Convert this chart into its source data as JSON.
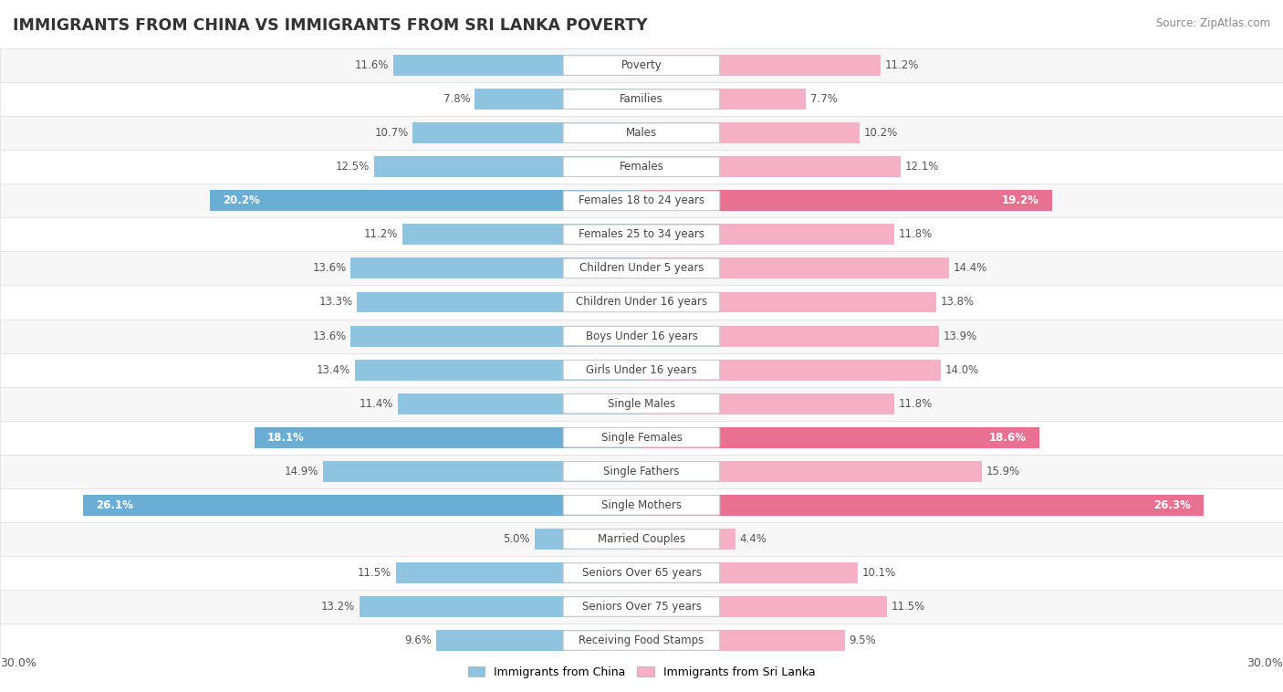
{
  "title": "IMMIGRANTS FROM CHINA VS IMMIGRANTS FROM SRI LANKA POVERTY",
  "source": "Source: ZipAtlas.com",
  "categories": [
    "Poverty",
    "Families",
    "Males",
    "Females",
    "Females 18 to 24 years",
    "Females 25 to 34 years",
    "Children Under 5 years",
    "Children Under 16 years",
    "Boys Under 16 years",
    "Girls Under 16 years",
    "Single Males",
    "Single Females",
    "Single Fathers",
    "Single Mothers",
    "Married Couples",
    "Seniors Over 65 years",
    "Seniors Over 75 years",
    "Receiving Food Stamps"
  ],
  "china_values": [
    11.6,
    7.8,
    10.7,
    12.5,
    20.2,
    11.2,
    13.6,
    13.3,
    13.6,
    13.4,
    11.4,
    18.1,
    14.9,
    26.1,
    5.0,
    11.5,
    13.2,
    9.6
  ],
  "srilanka_values": [
    11.2,
    7.7,
    10.2,
    12.1,
    19.2,
    11.8,
    14.4,
    13.8,
    13.9,
    14.0,
    11.8,
    18.6,
    15.9,
    26.3,
    4.4,
    10.1,
    11.5,
    9.5
  ],
  "china_color": "#8EC4E0",
  "srilanka_color": "#F5B0C5",
  "china_highlight_color": "#6AAED6",
  "srilanka_highlight_color": "#E87090",
  "highlight_rows": [
    4,
    11,
    13
  ],
  "max_value": 30.0,
  "label_fontsize": 8.5,
  "value_fontsize": 8.5,
  "title_fontsize": 12.5
}
